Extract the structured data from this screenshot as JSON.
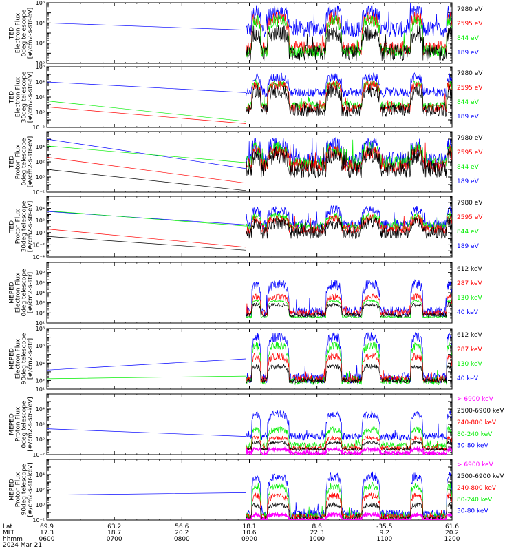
{
  "colors": {
    "black": "#000000",
    "red": "#ff0000",
    "green": "#00ee00",
    "blue": "#0000ff",
    "magenta": "#ff00ff"
  },
  "chart_data": {
    "type": "line",
    "x_axis": {
      "time_ticks": [
        "0600",
        "0700",
        "0800",
        "0900",
        "1000",
        "1100",
        "1200"
      ],
      "lat_ticks": [
        "69.9",
        "63.2",
        "56.6",
        "18.1",
        "8.6",
        "-35.5",
        "61.6"
      ],
      "mlt_ticks": [
        "17.3",
        "18.7",
        "20.2",
        "10.6",
        "22.3",
        "9.2",
        "20.2"
      ],
      "row_labels": [
        "Lat",
        "MLT",
        "hhmm"
      ],
      "date": "2024 Mar 21",
      "range": [
        "0600",
        "1200"
      ]
    },
    "panels": [
      {
        "id": "ted-electron-0",
        "ylabel": [
          "TED",
          "Electron Flux",
          "0deg telescope",
          "[#/cm2-s-str-eV]"
        ],
        "log_scale": true,
        "ylim_exp": [
          0,
          6
        ],
        "major_tick_exps": [
          0,
          2,
          4,
          6
        ],
        "tick_labels": [
          "10⁰",
          "10²",
          "10⁴",
          "10⁶"
        ],
        "legend": [
          {
            "label": "7980 eV",
            "color": "black"
          },
          {
            "label": "2595 eV",
            "color": "red"
          },
          {
            "label": "844 eV",
            "color": "green"
          },
          {
            "label": "189 eV",
            "color": "blue"
          }
        ]
      },
      {
        "id": "ted-electron-30",
        "ylabel": [
          "TED",
          "Electron Flux",
          "30deg telescope",
          "[#/cm2-s-str-eV]"
        ],
        "log_scale": true,
        "ylim_exp": [
          -2,
          6
        ],
        "major_tick_exps": [
          -2,
          0,
          2,
          4,
          6
        ],
        "tick_labels": [
          "10⁻²",
          "10⁰",
          "10²",
          "10⁴",
          "10⁶"
        ],
        "legend": [
          {
            "label": "7980 eV",
            "color": "black"
          },
          {
            "label": "2595 eV",
            "color": "red"
          },
          {
            "label": "844 eV",
            "color": "green"
          },
          {
            "label": "189 eV",
            "color": "blue"
          }
        ]
      },
      {
        "id": "ted-proton-0",
        "ylabel": [
          "TED",
          "Proton Flux",
          "0deg telescope",
          "[#/cm2-s-str-eV]"
        ],
        "log_scale": true,
        "ylim_exp": [
          -2,
          6
        ],
        "major_tick_exps": [
          -2,
          0,
          2,
          4
        ],
        "tick_labels": [
          "10⁻²",
          "10⁰",
          "10²",
          "10⁴"
        ],
        "legend": [
          {
            "label": "7980 eV",
            "color": "black"
          },
          {
            "label": "2595 eV",
            "color": "red"
          },
          {
            "label": "844 eV",
            "color": "green"
          },
          {
            "label": "189 eV",
            "color": "blue"
          }
        ]
      },
      {
        "id": "ted-proton-30",
        "ylabel": [
          "TED",
          "Proton Flux",
          "30deg telescope",
          "[#/cm2-s-str-eV]"
        ],
        "log_scale": true,
        "ylim_exp": [
          -4,
          6
        ],
        "major_tick_exps": [
          -4,
          -2,
          0,
          2,
          4
        ],
        "tick_labels": [
          "10⁻⁴",
          "10⁻²",
          "10⁰",
          "10²",
          "10⁴"
        ],
        "legend": [
          {
            "label": "7980 eV",
            "color": "black"
          },
          {
            "label": "2595 eV",
            "color": "red"
          },
          {
            "label": "844 eV",
            "color": "green"
          },
          {
            "label": "189 eV",
            "color": "blue"
          }
        ]
      },
      {
        "id": "meped-electron-0",
        "ylabel": [
          "MEPED",
          "Electron Flux",
          "0deg telescope",
          "[#/cm2-s-str]"
        ],
        "log_scale": true,
        "ylim_exp": [
          1,
          7
        ],
        "major_tick_exps": [
          1,
          2,
          3,
          4,
          5,
          6
        ],
        "tick_labels": [
          "10¹",
          "10²",
          "10³",
          "10⁴",
          "10⁵",
          "10⁶"
        ],
        "legend": [
          {
            "label": "612 keV",
            "color": "black"
          },
          {
            "label": "287 keV",
            "color": "red"
          },
          {
            "label": "130 keV",
            "color": "green"
          },
          {
            "label": "40 keV",
            "color": "blue"
          }
        ]
      },
      {
        "id": "meped-electron-90",
        "ylabel": [
          "MEPED",
          "Electron Flux",
          "90deg telescope",
          "[#/cm2-s-str]"
        ],
        "log_scale": true,
        "ylim_exp": [
          1,
          8
        ],
        "major_tick_exps": [
          1,
          2,
          4,
          6,
          8
        ],
        "tick_labels": [
          "10¹",
          "10²",
          "10⁴",
          "10⁶",
          "10⁸"
        ],
        "legend": [
          {
            "label": "612 keV",
            "color": "black"
          },
          {
            "label": "287 keV",
            "color": "red"
          },
          {
            "label": "130 keV",
            "color": "green"
          },
          {
            "label": "40 keV",
            "color": "blue"
          }
        ]
      },
      {
        "id": "meped-proton-0",
        "ylabel": [
          "MEPED",
          "Proton Flux",
          "0deg telescope",
          "[#/cm2-s-str-keV]"
        ],
        "log_scale": true,
        "ylim_exp": [
          -2,
          6
        ],
        "major_tick_exps": [
          -2,
          0,
          2,
          4
        ],
        "tick_labels": [
          "10⁻²",
          "10⁰",
          "10²",
          "10⁴"
        ],
        "legend": [
          {
            "label": "> 6900 keV",
            "color": "magenta"
          },
          {
            "label": "2500-6900 keV",
            "color": "black"
          },
          {
            "label": "240-800 keV",
            "color": "red"
          },
          {
            "label": "80-240 keV",
            "color": "green"
          },
          {
            "label": "30-80 keV",
            "color": "blue"
          }
        ]
      },
      {
        "id": "meped-proton-90",
        "ylabel": [
          "MEPED",
          "Proton Flux",
          "90deg telescope",
          "[#/cm2-s-str-keV]"
        ],
        "log_scale": true,
        "ylim_exp": [
          -2,
          6
        ],
        "major_tick_exps": [
          -2,
          0,
          2,
          4
        ],
        "tick_labels": [
          "10⁻²",
          "10⁰",
          "10²",
          "10⁴"
        ],
        "legend": [
          {
            "label": "> 6900 keV",
            "color": "magenta"
          },
          {
            "label": "2500-6900 keV",
            "color": "black"
          },
          {
            "label": "240-800 keV",
            "color": "red"
          },
          {
            "label": "80-240 keV",
            "color": "green"
          },
          {
            "label": "30-80 keV",
            "color": "blue"
          }
        ]
      }
    ],
    "series_profiles": {
      "ted-electron-0": {
        "blue": {
          "start": 4.0,
          "gapEnd": 3.3,
          "base": 3.4,
          "peaks": 5.0,
          "noise": 0.8
        },
        "red": {
          "base": 1.5,
          "peaks": 4.5,
          "noise": 0.7
        },
        "green": {
          "base": 1.2,
          "peaks": 4.2,
          "noise": 0.6
        },
        "black": {
          "base": 1.0,
          "peaks": 3.0,
          "noise": 0.8
        }
      },
      "ted-electron-30": {
        "blue": {
          "start": 4.0,
          "gapEnd": 2.6,
          "base": 2.6,
          "peaks": 4.6,
          "noise": 0.6
        },
        "green": {
          "start": 1.5,
          "gapEnd": -1.2,
          "base": 0.9,
          "peaks": 3.8,
          "noise": 0.5
        },
        "red": {
          "start": 0.7,
          "gapEnd": -1.5,
          "base": 0.6,
          "peaks": 3.6,
          "noise": 0.6
        },
        "black": {
          "base": 0.3,
          "peaks": 2.8,
          "noise": 0.9
        }
      },
      "ted-proton-0": {
        "blue": {
          "start": 5.0,
          "gapEnd": 1.1,
          "base": 2.3,
          "peaks": 4.2,
          "noise": 1.0
        },
        "green": {
          "start": 4.1,
          "gapEnd": 1.9,
          "base": 1.9,
          "peaks": 3.8,
          "noise": 0.9
        },
        "red": {
          "start": 2.6,
          "gapEnd": -0.8,
          "base": 1.5,
          "peaks": 3.3,
          "noise": 0.9
        },
        "black": {
          "start": 1.0,
          "gapEnd": -1.8,
          "base": 1.0,
          "peaks": 2.8,
          "noise": 1.1
        }
      },
      "ted-proton-30": {
        "blue": {
          "start": 3.5,
          "gapEnd": 1.3,
          "base": 1.3,
          "peaks": 3.7,
          "noise": 0.8
        },
        "green": {
          "start": 3.6,
          "gapEnd": 1.1,
          "base": 1.1,
          "peaks": 2.7,
          "noise": 0.6
        },
        "red": {
          "start": 0.6,
          "gapEnd": -2.4,
          "base": 0.6,
          "peaks": 2.2,
          "noise": 0.8
        },
        "black": {
          "start": -0.6,
          "gapEnd": -2.9,
          "base": 0.0,
          "peaks": 1.6,
          "noise": 1.0
        }
      },
      "meped-electron-0": {
        "blue": {
          "base": 2.1,
          "peaks": 4.8,
          "noise": 0.5
        },
        "green": {
          "base": 1.6,
          "peaks": 3.2,
          "noise": 0.1
        },
        "red": {
          "base": 2.0,
          "peaks": 3.6,
          "noise": 0.3
        },
        "black": {
          "base": 1.8,
          "peaks": 2.8,
          "noise": 0.2
        }
      },
      "meped-electron-90": {
        "blue": {
          "start": 3.2,
          "gapEnd": 4.5,
          "base": 2.3,
          "peaks": 7.0,
          "noise": 0.6
        },
        "green": {
          "start": 2.2,
          "gapEnd": 2.5,
          "base": 2.0,
          "peaks": 6.0,
          "noise": 0.5
        },
        "red": {
          "base": 2.2,
          "peaks": 4.8,
          "noise": 0.4
        },
        "black": {
          "base": 2.0,
          "peaks": 3.6,
          "noise": 0.3
        }
      },
      "meped-proton-0": {
        "blue": {
          "start": 1.4,
          "gapEnd": 0.4,
          "base": 0.4,
          "peaks": 3.3,
          "noise": 0.5
        },
        "green": {
          "base": -0.8,
          "peaks": 1.3,
          "noise": 0.4
        },
        "red": {
          "base": -1.2,
          "peaks": 0.2,
          "noise": 0.3
        },
        "black": {
          "base": -1.3,
          "peaks": -0.4,
          "noise": 0.2
        },
        "magenta": {
          "base": -1.8,
          "peaks": -1.3,
          "noise": 0.2
        }
      },
      "meped-proton-90": {
        "blue": {
          "start": 1.3,
          "gapEnd": 1.6,
          "base": -1.2,
          "peaks": 3.8,
          "noise": 0.6
        },
        "green": {
          "base": -1.5,
          "peaks": 2.5,
          "noise": 0.5
        },
        "red": {
          "base": -1.6,
          "peaks": 1.2,
          "noise": 0.4
        },
        "black": {
          "base": -1.8,
          "peaks": 0.0,
          "noise": 0.3
        },
        "magenta": {
          "base": -2.0,
          "peaks": -1.3,
          "noise": 0.2
        }
      }
    },
    "data_gap_end_time": "0857",
    "event_windows": [
      "0902-0910",
      "0916-0935",
      "1008-1022",
      "1040-1056",
      "1123-1134",
      "1155-1200"
    ]
  }
}
